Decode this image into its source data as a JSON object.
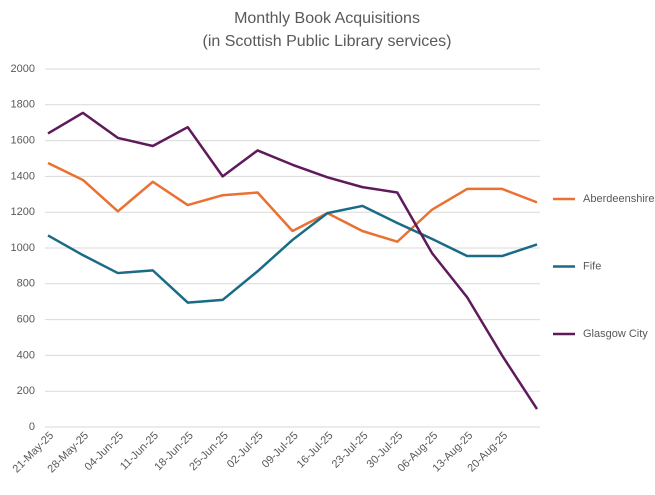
{
  "chart_data": {
    "type": "line",
    "title": "Monthly Book Acquisitions",
    "subtitle": "(in Scottish Public Library services)",
    "categories": [
      "21-May-25",
      "28-May-25",
      "04-Jun-25",
      "11-Jun-25",
      "18-Jun-25",
      "25-Jun-25",
      "02-Jul-25",
      "09-Jul-25",
      "16-Jul-25",
      "23-Jul-25",
      "30-Jul-25",
      "06-Aug-25",
      "13-Aug-25",
      "20-Aug-25",
      null
    ],
    "series": [
      {
        "name": "Aberdeenshire",
        "color": "#e97132",
        "values": [
          1475,
          1380,
          1205,
          1370,
          1240,
          1295,
          1310,
          1095,
          1195,
          1095,
          1035,
          1215,
          1330,
          1330,
          1255
        ]
      },
      {
        "name": "Fife",
        "color": "#196b86",
        "values": [
          1070,
          960,
          860,
          875,
          695,
          710,
          870,
          1045,
          1195,
          1235,
          1140,
          1050,
          955,
          955,
          1020
        ]
      },
      {
        "name": "Glasgow City",
        "color": "#5e1a5a",
        "values": [
          1640,
          1755,
          1615,
          1570,
          1675,
          1400,
          1545,
          1465,
          1395,
          1340,
          1310,
          970,
          725,
          400,
          100
        ]
      }
    ],
    "ylim": [
      0,
      2000
    ],
    "yticks": [
      0,
      200,
      400,
      600,
      800,
      1000,
      1200,
      1400,
      1600,
      1800,
      2000
    ],
    "grid": true,
    "legend": "right"
  }
}
